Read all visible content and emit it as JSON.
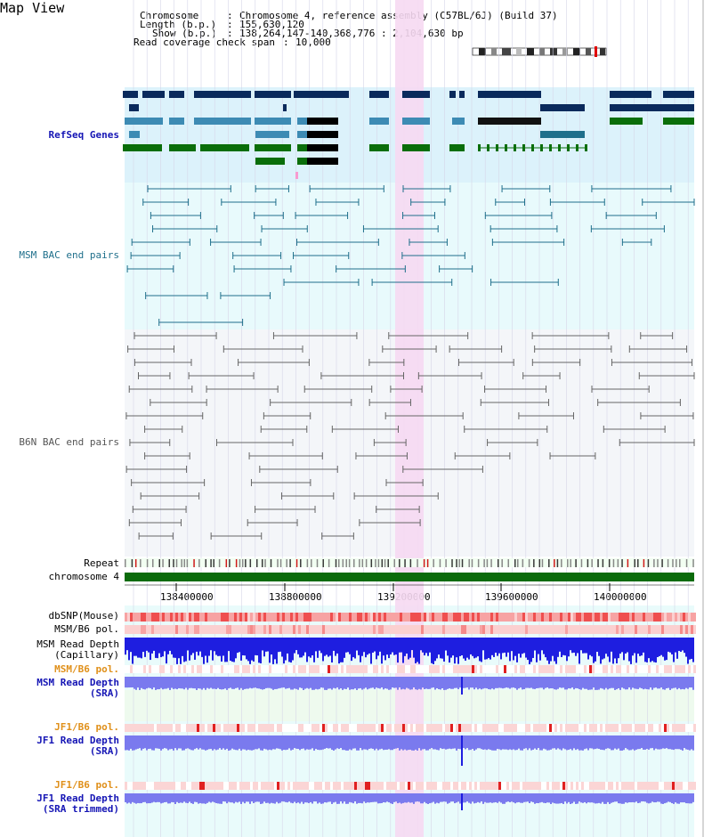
{
  "page": {
    "title": "Map View"
  },
  "header": {
    "chromosome_label": "Chromosome",
    "chromosome_value": "Chromosome 4, reference assembly (C57BL/6J) (Build 37)",
    "length_label": "Length (b.p.)",
    "length_value": "155,630,120",
    "show_label": "Show (b.p.)",
    "show_value": "138,264,147-140,368,776 : 2,104,630 bp",
    "coverage_label": "Read coverage check span",
    "coverage_value": "10,000"
  },
  "tracks": {
    "refseq": "RefSeq Genes",
    "msm_bac": "MSM BAC end pairs",
    "b6n_bac": "B6N BAC end pairs",
    "repeat": "Repeat",
    "chromosome": "chromosome 4",
    "dbsnp": "dbSNP(Mouse)",
    "msm_b6_pol_1": "MSM/B6 pol.",
    "msm_read_depth_cap_1": "MSM Read Depth",
    "msm_read_depth_cap_2": "(Capillary)",
    "msm_b6_pol_2": "MSM/B6 pol.",
    "msm_read_depth_sra_1": "MSM Read Depth",
    "msm_read_depth_sra_2": "(SRA)",
    "jf1_b6_pol_1": "JF1/B6 pol.",
    "jf1_read_depth_1": "JF1 Read Depth",
    "jf1_read_depth_2": "(SRA)",
    "jf1_b6_pol_2": "JF1/B6 pol.",
    "jf1_read_depth_trim_1": "JF1 Read Depth",
    "jf1_read_depth_trim_2": "(SRA trimmed)"
  },
  "ruler": {
    "ticks": [
      "138400000",
      "138800000",
      "139200000",
      "139600000",
      "140000000"
    ]
  },
  "colors": {
    "refseq_bg": "#dcf2fb",
    "msm_bg": "#e8fafc",
    "b6n_bg": "#f4f6f9",
    "highlight": "#f6d9f2",
    "gene_dark": "#0a2a5c",
    "gene_mid": "#3d8bb4",
    "gene_green": "#0a6e0a",
    "msm_line": "#1f6f8b",
    "b6n_line": "#666666",
    "chromosome_bar": "#0b6b0b",
    "depth_blue": "#1e1ee0",
    "depth_light": "#7a7aee",
    "snp_red": "#ef4f4f"
  }
}
